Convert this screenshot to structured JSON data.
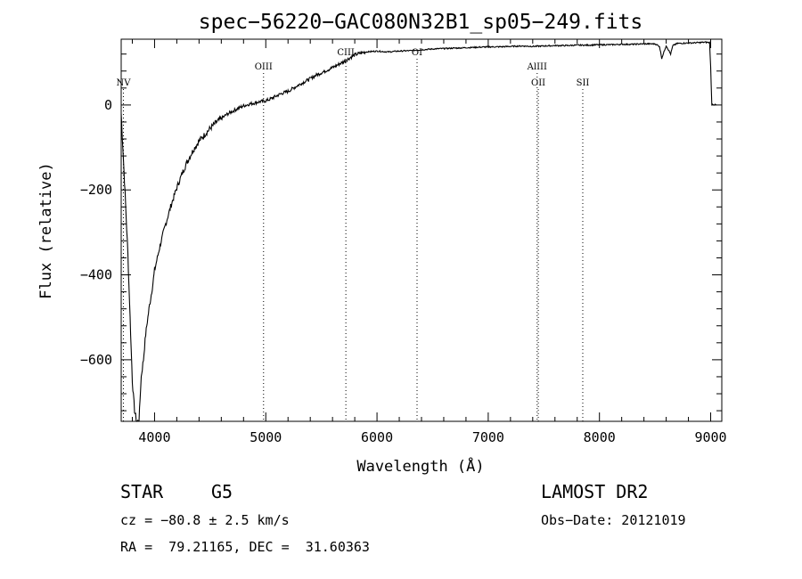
{
  "chart_data": {
    "type": "line",
    "title": "spec−56220−GAC080N32B1_sp05−249.fits",
    "xlabel": "Wavelength (Å)",
    "ylabel": "Flux (relative)",
    "xlim": [
      3700,
      9100
    ],
    "ylim": [
      -745,
      155
    ],
    "xticks": [
      4000,
      5000,
      6000,
      7000,
      8000,
      9000
    ],
    "xtick_labels": [
      "4000",
      "5000",
      "6000",
      "7000",
      "8000",
      "9000"
    ],
    "yticks": [
      0,
      -200,
      -400,
      -600
    ],
    "ytick_labels": [
      "0",
      "−200",
      "−400",
      "−600"
    ],
    "grid": false,
    "series": [
      {
        "x": [
          3700,
          3730,
          3760,
          3800,
          3820,
          3840,
          3860,
          3880,
          3900,
          3920,
          3950,
          3980,
          4000,
          4050,
          4100,
          4150,
          4200,
          4250,
          4300,
          4350,
          4400,
          4450,
          4500,
          4550,
          4600,
          4650,
          4700,
          4750,
          4800,
          4850,
          4900,
          4950,
          5000,
          5050,
          5100,
          5150,
          5200,
          5250,
          5300,
          5350,
          5400,
          5450,
          5500,
          5550,
          5600,
          5650,
          5700,
          5750,
          5800,
          5850,
          5900,
          6000,
          6100,
          6200,
          6300,
          6400,
          6500,
          6600,
          6700,
          6800,
          6900,
          7000,
          7100,
          7200,
          7300,
          7400,
          7500,
          7600,
          7700,
          7800,
          7900,
          8000,
          8100,
          8200,
          8300,
          8400,
          8500,
          8540,
          8560,
          8600,
          8640,
          8660,
          8700,
          8800,
          8900,
          8950,
          8990,
          9000,
          9010,
          9050
        ],
        "y": [
          -20,
          -180,
          -350,
          -650,
          -720,
          -745,
          -745,
          -640,
          -600,
          -540,
          -480,
          -430,
          -390,
          -330,
          -280,
          -235,
          -195,
          -160,
          -130,
          -105,
          -85,
          -70,
          -55,
          -42,
          -32,
          -22,
          -15,
          -8,
          -2,
          2,
          5,
          8,
          10,
          15,
          22,
          28,
          32,
          40,
          48,
          55,
          62,
          70,
          76,
          82,
          88,
          95,
          102,
          110,
          118,
          122,
          125,
          127,
          125,
          127,
          128,
          130,
          132,
          133,
          134,
          135,
          136,
          137,
          137,
          138,
          139,
          138,
          139,
          140,
          140,
          141,
          141,
          142,
          142,
          143,
          143,
          144,
          144,
          138,
          110,
          140,
          120,
          140,
          145,
          146,
          147,
          148,
          147,
          90,
          2,
          0
        ]
      }
    ],
    "lines": [
      {
        "label": "NV",
        "x": 3720,
        "label_row": 2
      },
      {
        "label": "OIII",
        "x": 4980,
        "label_row": 1
      },
      {
        "label": "CIII",
        "x": 5720,
        "label_row": 0
      },
      {
        "label": "OI",
        "x": 6360,
        "label_row": 0
      },
      {
        "label": "AlIII",
        "x": 7440,
        "label_row": 1
      },
      {
        "label": "OII",
        "x": 7450,
        "label_row": 2
      },
      {
        "label": "SII",
        "x": 7850,
        "label_row": 2
      }
    ]
  },
  "info": {
    "obj_class": "STAR",
    "subclass": "G5",
    "cz": "cz = −80.8 ± 2.5 km/s",
    "radec": "RA =  79.21165, DEC =  31.60363",
    "survey": "LAMOST DR2",
    "obsdate": "Obs−Date: 20121019"
  }
}
